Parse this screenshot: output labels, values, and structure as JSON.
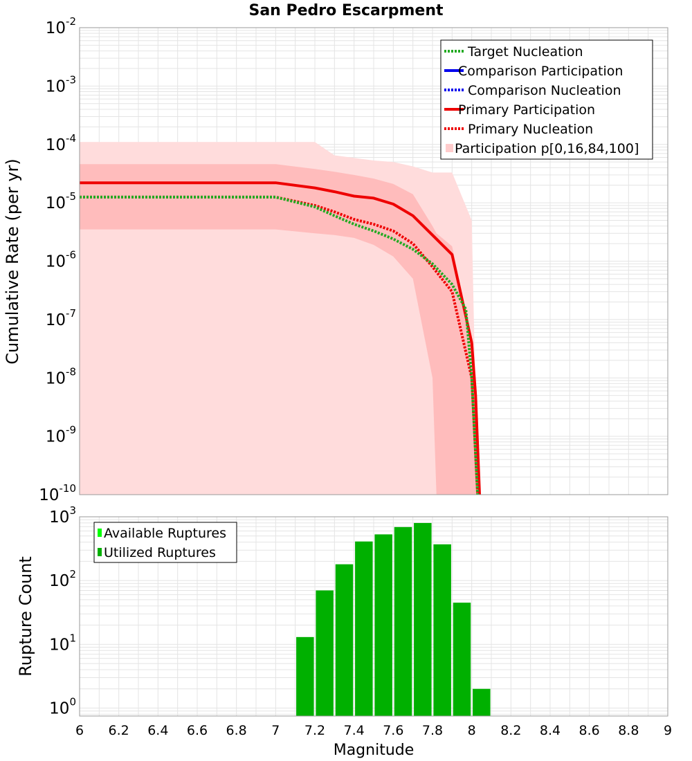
{
  "chart_data": [
    {
      "type": "line",
      "title": "San Pedro Escarpment",
      "xlabel": "",
      "ylabel": "Cumulative Rate (per yr)",
      "xlim": [
        6,
        9
      ],
      "ylim": [
        1e-10,
        0.01
      ],
      "yscale": "log",
      "grid": true,
      "legend_position": "top-right",
      "y_ticks": [
        {
          "base": "10",
          "exp": "-2",
          "value": 0.01
        },
        {
          "base": "10",
          "exp": "-3",
          "value": 0.001
        },
        {
          "base": "10",
          "exp": "-4",
          "value": 0.0001
        },
        {
          "base": "10",
          "exp": "-5",
          "value": 1e-05
        },
        {
          "base": "10",
          "exp": "-6",
          "value": 1e-06
        },
        {
          "base": "10",
          "exp": "-7",
          "value": 1e-07
        },
        {
          "base": "10",
          "exp": "-8",
          "value": 1e-08
        },
        {
          "base": "10",
          "exp": "-9",
          "value": 1e-09
        },
        {
          "base": "10",
          "exp": "-10",
          "value": 1e-10
        }
      ],
      "legend": [
        {
          "label": "Target Nucleation",
          "color": "#22aa22",
          "style": "dotted"
        },
        {
          "label": "Comparison Participation",
          "color": "#0000ee",
          "style": "solid"
        },
        {
          "label": "Comparison Nucleation",
          "color": "#0000ee",
          "style": "dotted"
        },
        {
          "label": "Primary Participation",
          "color": "#ee0000",
          "style": "solid"
        },
        {
          "label": "Primary Nucleation",
          "color": "#ee0000",
          "style": "dotted"
        },
        {
          "label": "Participation p[0,16,84,100]",
          "color": "#ffcccc",
          "style": "box"
        }
      ],
      "bands": {
        "name": "Participation p[0,16,84,100]",
        "outer_color": "#ffdcdc",
        "inner_color": "#ffbcbc",
        "outer": {
          "x": [
            6.0,
            7.0,
            7.2,
            7.3,
            7.5,
            7.6,
            7.7,
            7.8,
            7.9,
            8.0,
            8.03,
            8.05
          ],
          "upper": [
            0.00011,
            0.00011,
            0.00011,
            6.5e-05,
            5.3e-05,
            5e-05,
            4.2e-05,
            3.3e-05,
            3.3e-05,
            5e-06,
            1e-10,
            1e-10
          ],
          "lower": [
            1e-10,
            1e-10,
            1e-10,
            1e-10,
            1e-10,
            1e-10,
            1e-10,
            1e-10,
            1e-10,
            1e-10,
            1e-10,
            1e-10
          ]
        },
        "inner": {
          "x": [
            6.0,
            7.0,
            7.2,
            7.3,
            7.4,
            7.5,
            7.6,
            7.7,
            7.8,
            7.82,
            7.9,
            8.0,
            8.03
          ],
          "upper": [
            4.6e-05,
            4.6e-05,
            3.8e-05,
            3.4e-05,
            3e-05,
            2.6e-05,
            2.1e-05,
            1.4e-05,
            4e-06,
            3e-06,
            1.8e-06,
            5e-08,
            1e-10
          ],
          "lower": [
            3.5e-06,
            3.5e-06,
            3e-06,
            2.8e-06,
            2.5e-06,
            1.9e-06,
            1.2e-06,
            5e-07,
            1e-08,
            1e-10,
            1e-10,
            1e-10,
            1e-10
          ]
        }
      },
      "series": [
        {
          "name": "Primary Participation",
          "color": "#ee0000",
          "style": "solid",
          "x": [
            6.0,
            6.5,
            7.0,
            7.2,
            7.3,
            7.4,
            7.5,
            7.6,
            7.7,
            7.9,
            8.0,
            8.02,
            8.04
          ],
          "y": [
            2.2e-05,
            2.2e-05,
            2.2e-05,
            1.8e-05,
            1.55e-05,
            1.3e-05,
            1.2e-05,
            9.5e-06,
            6e-06,
            1.3e-06,
            4e-08,
            5e-09,
            1e-10
          ]
        },
        {
          "name": "Primary Nucleation",
          "color": "#ee0000",
          "style": "dotted",
          "x": [
            6.0,
            7.0,
            7.2,
            7.3,
            7.4,
            7.5,
            7.6,
            7.7,
            7.8,
            7.9,
            8.0,
            8.03
          ],
          "y": [
            1.25e-05,
            1.25e-05,
            9e-06,
            7e-06,
            5.2e-06,
            4.3e-06,
            3.3e-06,
            2e-06,
            8e-07,
            3e-07,
            1e-08,
            1e-10
          ]
        },
        {
          "name": "Target Nucleation",
          "color": "#22aa22",
          "style": "dotted",
          "x": [
            6.0,
            7.0,
            7.2,
            7.3,
            7.4,
            7.5,
            7.6,
            7.7,
            7.8,
            7.9,
            7.97,
            8.0,
            8.03
          ],
          "y": [
            1.25e-05,
            1.25e-05,
            8.5e-06,
            6e-06,
            4.3e-06,
            3.3e-06,
            2.4e-06,
            1.6e-06,
            9e-07,
            4e-07,
            1.5e-07,
            1e-08,
            1e-10
          ]
        }
      ]
    },
    {
      "type": "bar",
      "title": "",
      "xlabel": "Magnitude",
      "ylabel": "Rupture Count",
      "xlim": [
        6,
        9
      ],
      "ylim": [
        0.75,
        1000
      ],
      "yscale": "log",
      "grid": true,
      "legend_position": "top-left",
      "x_ticks": [
        "6",
        "6.2",
        "6.4",
        "6.6",
        "6.8",
        "7",
        "7.2",
        "7.4",
        "7.6",
        "7.8",
        "8",
        "8.2",
        "8.4",
        "8.6",
        "8.8",
        "9"
      ],
      "y_ticks": [
        {
          "base": "10",
          "exp": "3",
          "value": 1000
        },
        {
          "base": "10",
          "exp": "2",
          "value": 100
        },
        {
          "base": "10",
          "exp": "1",
          "value": 10
        },
        {
          "base": "10",
          "exp": "0",
          "value": 1
        }
      ],
      "legend": [
        {
          "label": "Available Ruptures",
          "color": "#00ff00"
        },
        {
          "label": "Utilized Ruptures",
          "color": "#00b000"
        }
      ],
      "bar_width": 0.09,
      "bar_color": "#00b000",
      "x": [
        7.15,
        7.25,
        7.35,
        7.45,
        7.55,
        7.65,
        7.75,
        7.85,
        7.95,
        8.05
      ],
      "values": [
        13,
        70,
        180,
        410,
        530,
        690,
        800,
        370,
        45,
        2
      ]
    }
  ]
}
